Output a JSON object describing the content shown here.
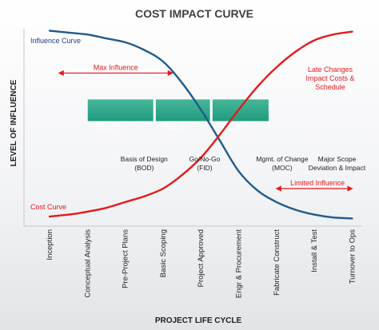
{
  "chart_data": {
    "type": "line",
    "title": "COST IMPACT CURVE",
    "xlabel": "PROJECT LIFE CYCLE",
    "ylabel": "LEVEL OF INFLUENCE",
    "categories": [
      "Inception",
      "Conceptual Analysis",
      "Pre-Project Plans",
      "Basic Scoping",
      "Project Approved",
      "Engr & Procurement",
      "Fabricate Construct",
      "Install & Test",
      "Turnover to Ops"
    ],
    "ylim": [
      0,
      100
    ],
    "grid": false,
    "series": [
      {
        "name": "Influence Curve",
        "color": "#1f5b8b",
        "x": [
          0,
          0.5,
          1,
          1.5,
          2,
          2.5,
          3,
          3.5,
          4,
          4.5,
          5,
          5.5,
          6,
          6.5,
          7,
          7.5,
          8
        ],
        "values": [
          99,
          98,
          97,
          95,
          93,
          89,
          83,
          72,
          58,
          42,
          26,
          16,
          10,
          6,
          3.5,
          2,
          1.5
        ]
      },
      {
        "name": "Cost Curve",
        "color": "#e41a1c",
        "x": [
          0,
          0.5,
          1,
          1.5,
          2,
          2.5,
          3,
          3.5,
          4,
          4.5,
          5,
          5.5,
          6,
          6.5,
          7,
          7.5,
          8
        ],
        "values": [
          2.5,
          3.5,
          5,
          7,
          10,
          13,
          17,
          24,
          33,
          45,
          58,
          70,
          80,
          88,
          94,
          97,
          98.5
        ]
      }
    ],
    "phases": [
      {
        "label": "FEL-1",
        "from": 1,
        "to": 2.75
      },
      {
        "label": "FEL-2",
        "from": 2.8,
        "to": 4.25
      },
      {
        "label": "FEL-3",
        "from": 4.3,
        "to": 5.8
      }
    ],
    "annotations": {
      "max_influence": {
        "label": "Max Influence",
        "from": 0.25,
        "to": 3.25,
        "y": 77
      },
      "limited_influence": {
        "label": "Limited Influence",
        "from": 6,
        "to": 8,
        "y": 17
      },
      "late_changes": [
        "Late Changes",
        "Impact Costs &",
        "Schedule"
      ],
      "milestones": [
        {
          "lines": [
            "Basis of Design",
            "(BOD)"
          ],
          "x": 2.5
        },
        {
          "lines": [
            "Go/No-Go",
            "(FID)"
          ],
          "x": 4.1
        },
        {
          "lines": [
            "Mgmt. of Change",
            "(MOC)"
          ],
          "x": 6.15
        },
        {
          "lines": [
            "Major Scope",
            "Deviation & Impact"
          ],
          "x": 7.6
        }
      ]
    }
  }
}
